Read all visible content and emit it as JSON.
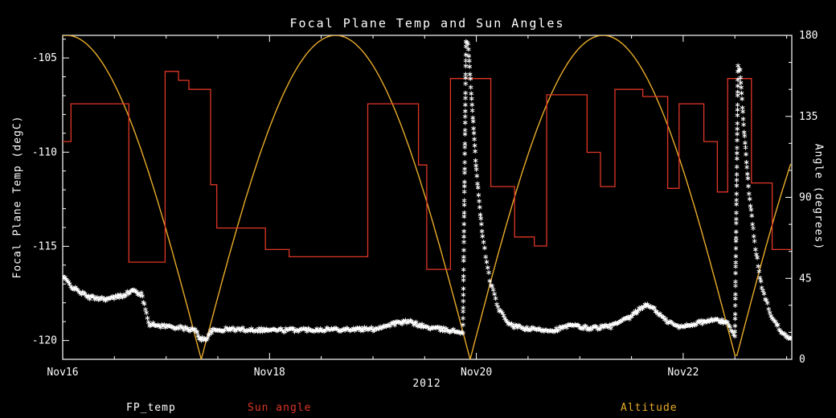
{
  "colors": {
    "background": "#000000",
    "axis": "#ffffff",
    "fp_temp": "#ffffff",
    "sun_angle": "#df3626",
    "altitude": "#e9ac2a"
  },
  "chart_data": {
    "type": "line",
    "title": "Focal Plane Temp and Sun Angles",
    "xlabel": "2012",
    "ylabel_left": "Focal Plane Temp (degC)",
    "ylabel_right": "Angle (degrees)",
    "x_unit": "days since Nov 16 2012 00:00",
    "xlim": [
      0,
      7.05
    ],
    "x_ticks": [
      {
        "t": 0,
        "label": "Nov16"
      },
      {
        "t": 2,
        "label": "Nov18"
      },
      {
        "t": 4,
        "label": "Nov20"
      },
      {
        "t": 6,
        "label": "Nov22"
      }
    ],
    "x_minor_step": 0.5,
    "ylim_left": [
      -121.0,
      -103.8
    ],
    "y_ticks_left": [
      -105,
      -110,
      -115,
      -120
    ],
    "y_minor_step_left": 1,
    "ylim_right": [
      0,
      180
    ],
    "y_ticks_right": [
      0,
      45,
      90,
      135,
      180
    ],
    "y_minor_step_right": 15,
    "grid": false,
    "legend_position": "bottom",
    "series": [
      {
        "name": "FP_temp",
        "color": "#ffffff",
        "style": "asterisk-scatter",
        "axis": "left",
        "noise_degC": 0.1,
        "anchors": [
          [
            0.0,
            -116.6
          ],
          [
            0.1,
            -117.2
          ],
          [
            0.25,
            -117.7
          ],
          [
            0.45,
            -117.8
          ],
          [
            0.58,
            -117.6
          ],
          [
            0.68,
            -117.35
          ],
          [
            0.76,
            -117.55
          ],
          [
            0.8,
            -118.3
          ],
          [
            0.84,
            -119.15
          ],
          [
            1.1,
            -119.3
          ],
          [
            1.28,
            -119.45
          ],
          [
            1.33,
            -119.9
          ],
          [
            1.38,
            -119.95
          ],
          [
            1.44,
            -119.5
          ],
          [
            1.6,
            -119.4
          ],
          [
            2.1,
            -119.45
          ],
          [
            2.6,
            -119.4
          ],
          [
            3.0,
            -119.4
          ],
          [
            3.2,
            -119.1
          ],
          [
            3.35,
            -119.0
          ],
          [
            3.52,
            -119.3
          ],
          [
            3.72,
            -119.45
          ],
          [
            3.87,
            -119.55
          ],
          [
            3.9,
            -104.1
          ],
          [
            3.92,
            -104.3
          ],
          [
            3.95,
            -106.8
          ],
          [
            4.0,
            -111.0
          ],
          [
            4.06,
            -114.5
          ],
          [
            4.13,
            -116.8
          ],
          [
            4.22,
            -118.4
          ],
          [
            4.33,
            -119.2
          ],
          [
            4.5,
            -119.4
          ],
          [
            4.75,
            -119.45
          ],
          [
            4.92,
            -119.2
          ],
          [
            5.08,
            -119.35
          ],
          [
            5.3,
            -119.25
          ],
          [
            5.48,
            -118.8
          ],
          [
            5.62,
            -118.15
          ],
          [
            5.7,
            -118.2
          ],
          [
            5.82,
            -118.9
          ],
          [
            5.96,
            -119.3
          ],
          [
            6.15,
            -119.05
          ],
          [
            6.32,
            -118.9
          ],
          [
            6.44,
            -119.1
          ],
          [
            6.5,
            -119.85
          ],
          [
            6.53,
            -105.4
          ],
          [
            6.55,
            -105.7
          ],
          [
            6.58,
            -108.2
          ],
          [
            6.63,
            -111.8
          ],
          [
            6.69,
            -114.8
          ],
          [
            6.76,
            -117.2
          ],
          [
            6.86,
            -118.8
          ],
          [
            6.96,
            -119.6
          ],
          [
            7.05,
            -119.9
          ]
        ]
      },
      {
        "name": "Sun angle",
        "color": "#df3626",
        "style": "step",
        "axis": "right",
        "steps": [
          [
            0.0,
            121
          ],
          [
            0.08,
            142
          ],
          [
            0.64,
            54
          ],
          [
            0.99,
            160
          ],
          [
            1.12,
            155
          ],
          [
            1.22,
            150
          ],
          [
            1.43,
            97
          ],
          [
            1.49,
            73
          ],
          [
            1.96,
            61
          ],
          [
            2.19,
            57
          ],
          [
            2.95,
            142
          ],
          [
            3.44,
            108
          ],
          [
            3.52,
            50
          ],
          [
            3.75,
            156
          ],
          [
            4.14,
            96
          ],
          [
            4.37,
            68
          ],
          [
            4.56,
            63
          ],
          [
            4.68,
            147
          ],
          [
            5.07,
            115
          ],
          [
            5.2,
            96
          ],
          [
            5.34,
            150
          ],
          [
            5.61,
            146
          ],
          [
            5.85,
            95
          ],
          [
            5.96,
            142
          ],
          [
            6.2,
            121
          ],
          [
            6.33,
            93
          ],
          [
            6.43,
            156
          ],
          [
            6.66,
            98
          ],
          [
            6.86,
            61
          ]
        ]
      },
      {
        "name": "Altitude",
        "color": "#e9ac2a",
        "style": "abs-sine-arcs",
        "axis": "right",
        "amplitude": 180,
        "zero_crossings_days": [
          1.34,
          3.94,
          6.51
        ]
      }
    ]
  }
}
